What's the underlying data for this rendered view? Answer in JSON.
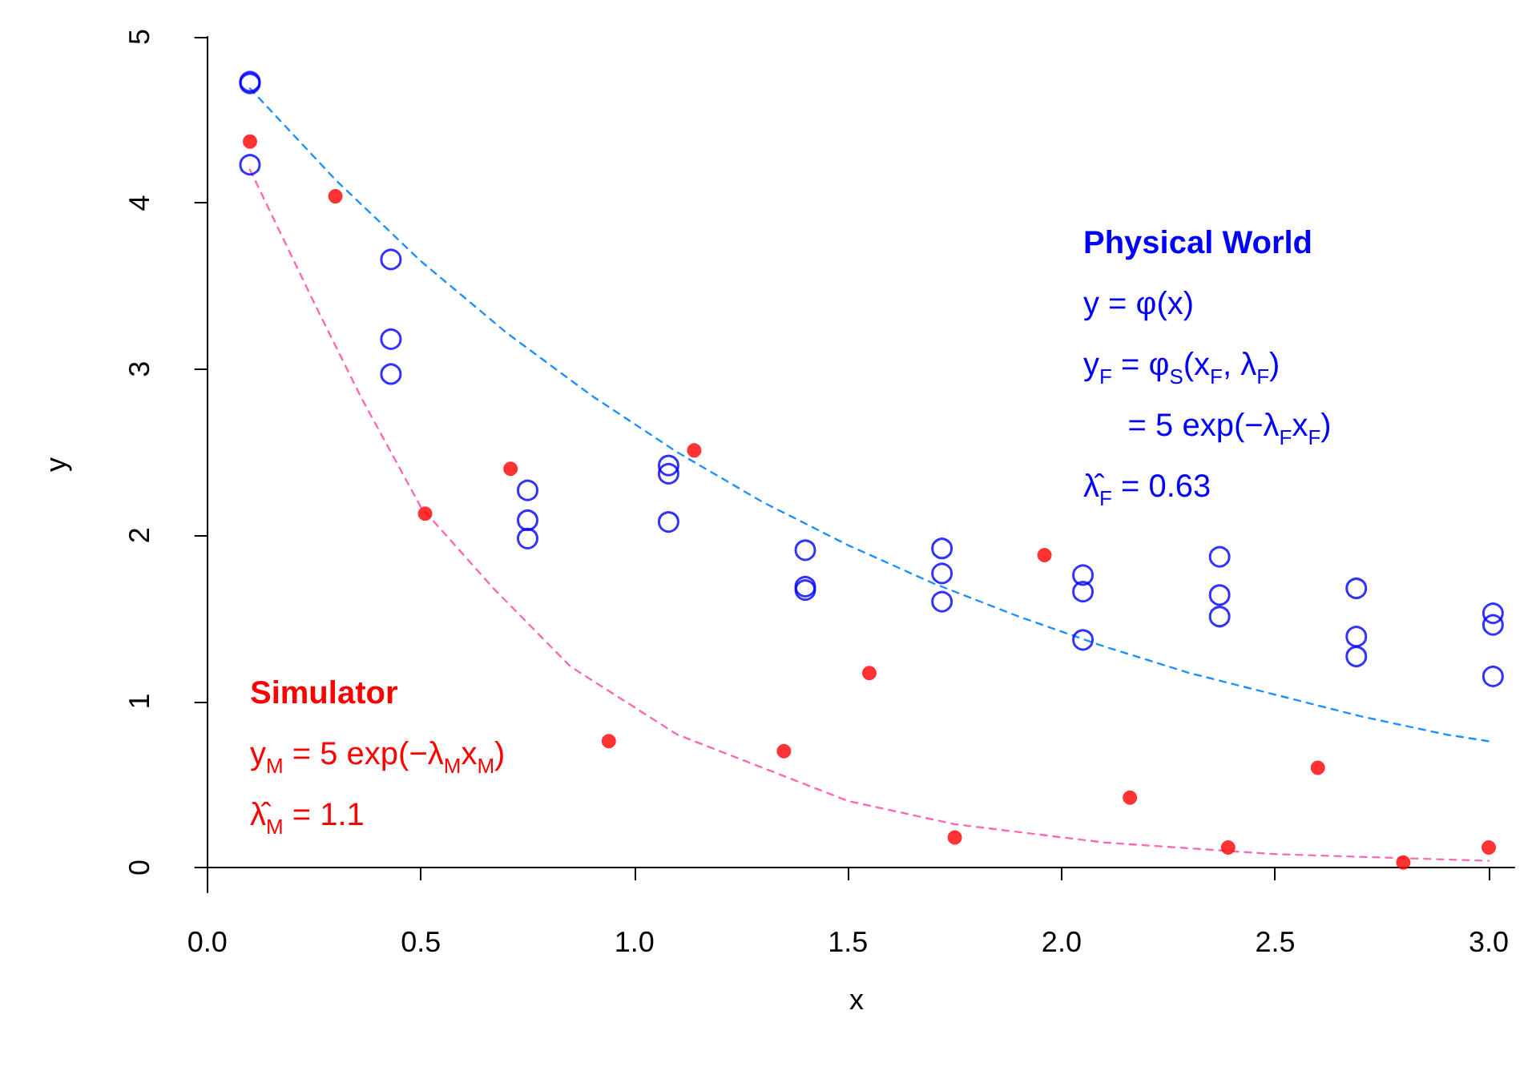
{
  "chart_data": {
    "type": "scatter",
    "xlabel": "x",
    "ylabel": "y",
    "xlim": [
      -0.02,
      3.06
    ],
    "ylim": [
      -0.15,
      5
    ],
    "xticks": [
      {
        "value": 0,
        "label": "0.0"
      },
      0.5,
      {
        "value": 1,
        "label": "1.0"
      },
      1.5,
      {
        "value": 2,
        "label": "2.0"
      },
      2.5,
      {
        "value": 3,
        "label": "3.0"
      }
    ],
    "yticks": [
      0,
      1,
      2,
      3,
      4,
      5
    ],
    "grid": false,
    "legend": false,
    "series": [
      {
        "name": "Physical World",
        "marker": "circle",
        "color": "#0000ff",
        "x": [
          0.1,
          0.1,
          0.1,
          0.43,
          0.43,
          0.43,
          0.75,
          0.75,
          0.75,
          1.08,
          1.08,
          1.08,
          1.4,
          1.4,
          1.4,
          1.72,
          1.72,
          1.72,
          2.05,
          2.05,
          2.05,
          2.37,
          2.37,
          2.37,
          2.69,
          2.69,
          2.69,
          3.01,
          3.01,
          3.01
        ],
        "values": [
          4.73,
          4.72,
          4.23,
          3.66,
          3.18,
          2.97,
          2.27,
          2.09,
          1.98,
          2.42,
          2.37,
          2.08,
          1.91,
          1.69,
          1.67,
          1.92,
          1.77,
          1.6,
          1.76,
          1.66,
          1.37,
          1.87,
          1.64,
          1.51,
          1.68,
          1.39,
          1.27,
          1.53,
          1.46,
          1.15
        ]
      },
      {
        "name": "Simulator",
        "marker": "circle",
        "color": "#ff0000",
        "x": [
          0.1,
          0.3,
          0.51,
          0.71,
          0.94,
          1.14,
          1.35,
          1.55,
          1.75,
          1.96,
          2.16,
          2.39,
          2.6,
          2.8,
          3.0
        ],
        "values": [
          4.37,
          4.04,
          2.13,
          2.4,
          0.76,
          2.51,
          0.7,
          1.17,
          0.18,
          1.88,
          0.42,
          0.12,
          0.6,
          0.03,
          0.12
        ]
      },
      {
        "type": "line",
        "line_style": "dashed",
        "marker": "none",
        "color": "#1e90ff",
        "x": [
          0.1,
          0.3,
          0.5,
          0.7,
          0.9,
          1.1,
          1.3,
          1.5,
          1.7,
          1.9,
          2.1,
          2.3,
          2.5,
          2.7,
          2.9,
          3.0
        ],
        "values": [
          4.69,
          4.14,
          3.65,
          3.22,
          2.84,
          2.5,
          2.2,
          1.94,
          1.71,
          1.51,
          1.33,
          1.17,
          1.04,
          0.91,
          0.8,
          0.76
        ]
      },
      {
        "type": "line",
        "line_style": "dashed",
        "marker": "none",
        "color": "#ff69b4",
        "x": [
          0.1,
          0.25,
          0.36,
          0.5,
          0.67,
          0.85,
          1.1,
          1.3,
          1.5,
          1.75,
          2.1,
          2.5,
          3.0
        ],
        "values": [
          4.2,
          3.4,
          2.83,
          2.17,
          1.68,
          1.21,
          0.8,
          0.6,
          0.4,
          0.26,
          0.15,
          0.08,
          0.04
        ]
      }
    ],
    "annotations": [
      "y = φ(x)",
      "y$_{F}$ = φ$_{S}$(x$_{F}$, λ$_{F}$)",
      "     = 5 exp(−λ$_{F}$x$_{F}$)",
      "λ̂$_{F}$ = 0.63",
      "y$_{M}$ = 5 exp(−λ$_{M}$x$_{M}$)",
      "λ̂$_{M}$ = 1.1"
    ]
  }
}
